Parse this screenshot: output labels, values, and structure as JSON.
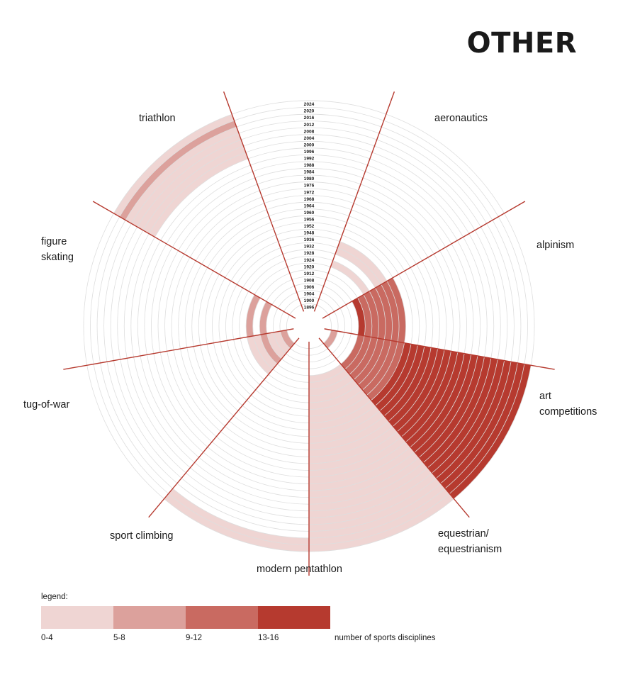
{
  "title": "OTHER",
  "legend": {
    "title": "legend:",
    "note": "number of sports disciplines",
    "bins": [
      {
        "label": "0-4",
        "color": "#efd5d3"
      },
      {
        "label": "5-8",
        "color": "#dca19c"
      },
      {
        "label": "9-12",
        "color": "#c96a61"
      },
      {
        "label": "13-16",
        "color": "#b63a2f"
      }
    ]
  },
  "colors": {
    "grid": "#dedede",
    "divider": "#b63a2f",
    "bins": [
      "#efd5d3",
      "#dca19c",
      "#c96a61",
      "#b63a2f"
    ]
  },
  "chart_data": {
    "type": "radial-timeline",
    "title": "OTHER",
    "years": [
      1896,
      1900,
      1904,
      1906,
      1908,
      1912,
      1920,
      1924,
      1928,
      1932,
      1936,
      1948,
      1952,
      1956,
      1960,
      1964,
      1968,
      1972,
      1976,
      1980,
      1984,
      1988,
      1992,
      1996,
      2000,
      2004,
      2008,
      2012,
      2016,
      2020,
      2024
    ],
    "categories": [
      {
        "name": "aeronautics",
        "label_lines": [
          "aeronautics"
        ],
        "years": []
      },
      {
        "name": "alpinism",
        "label_lines": [
          "alpinism"
        ],
        "years": [
          1924,
          1932,
          1936
        ]
      },
      {
        "name": "art competitions",
        "label_lines": [
          "art",
          "competitions"
        ],
        "years": [
          1912,
          1920,
          1924,
          1928,
          1932,
          1936,
          1948
        ]
      },
      {
        "name": "equestrian/equestrianism",
        "label_lines": [
          "equestrian/",
          "equestrianism"
        ],
        "years": [
          1900,
          1912,
          1920,
          1924,
          1928,
          1932,
          1936,
          1948,
          1952,
          1956,
          1960,
          1964,
          1968,
          1972,
          1976,
          1980,
          1984,
          1988,
          1992,
          1996,
          2000,
          2004,
          2008,
          2012,
          2016,
          2020,
          2024
        ]
      },
      {
        "name": "modern pentathlon",
        "label_lines": [
          "modern pentathlon"
        ],
        "years": [
          1912,
          1920,
          1924,
          1928,
          1932,
          1936,
          1948,
          1952,
          1956,
          1960,
          1964,
          1968,
          1972,
          1976,
          1980,
          1984,
          1988,
          1992,
          1996,
          2000,
          2004,
          2008,
          2012,
          2016,
          2020,
          2024
        ]
      },
      {
        "name": "sport climbing",
        "label_lines": [
          "sport climbing"
        ],
        "years": [
          2020,
          2024
        ]
      },
      {
        "name": "tug-of-war",
        "label_lines": [
          "tug-of-war"
        ],
        "years": [
          1900,
          1904,
          1906,
          1908,
          1912,
          1920
        ]
      },
      {
        "name": "figure skating",
        "label_lines": [
          "figure",
          "skating"
        ],
        "years": [
          1908,
          1920
        ]
      },
      {
        "name": "triathlon",
        "label_lines": [
          "triathlon"
        ],
        "years": [
          2000,
          2004,
          2008,
          2012,
          2016,
          2020,
          2024
        ]
      }
    ],
    "values": {
      "alpinism": [
        0,
        0,
        0
      ],
      "art competitions": [
        3,
        2,
        2,
        2,
        2,
        2,
        2
      ],
      "equestrian/equestrianism": [
        1,
        2,
        2,
        2,
        2,
        2,
        2,
        2,
        3,
        4,
        4,
        4,
        4,
        4,
        4,
        4,
        4,
        4,
        4,
        4,
        4,
        4,
        4,
        4,
        4,
        4,
        4
      ],
      "modern pentathlon": [
        0,
        0,
        0,
        0,
        0,
        0,
        0,
        0,
        0,
        0,
        0,
        0,
        0,
        0,
        0,
        0,
        0,
        0,
        0,
        0,
        0,
        0,
        0,
        0,
        0,
        0
      ],
      "sport climbing": [
        0,
        0
      ],
      "tug-of-war": [
        1,
        0,
        0,
        1,
        0,
        0
      ],
      "figure skating": [
        1,
        1
      ],
      "triathlon": [
        0,
        0,
        0,
        0,
        0,
        1,
        0
      ]
    }
  }
}
